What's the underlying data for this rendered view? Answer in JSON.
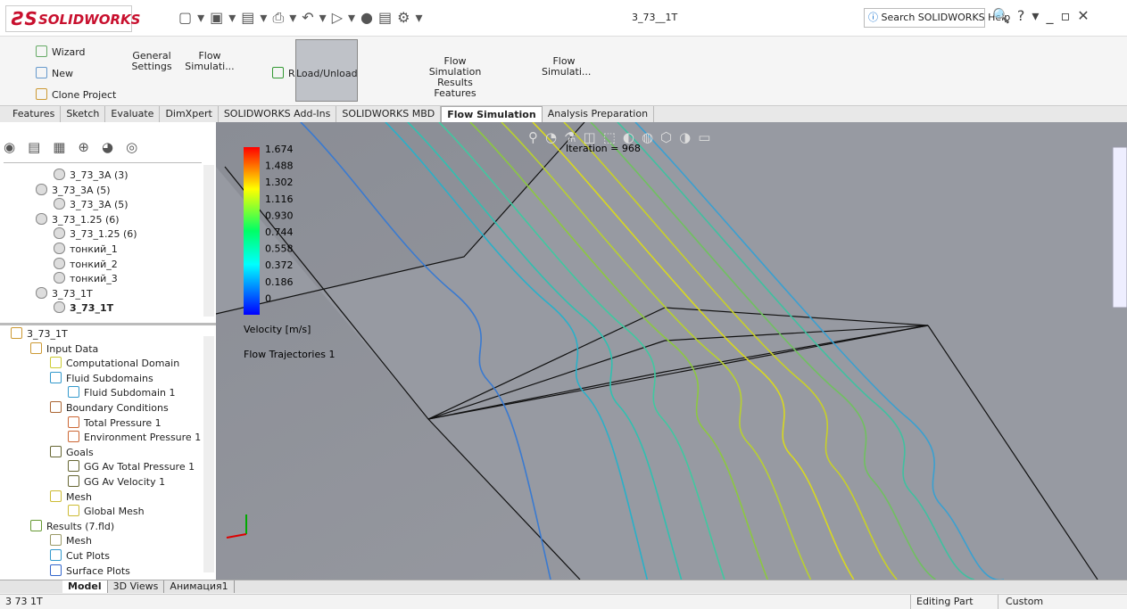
{
  "app": {
    "logo": "SOLIDWORKS",
    "document_title": "3_73__1T",
    "search_placeholder": "Search SOLIDWORKS Help"
  },
  "ribbon": {
    "buttons": [
      "Wizard",
      "New",
      "Clone Project",
      "General Settings",
      "Flow Simulati...",
      "Run",
      "Load/Unload",
      "Flow Simulation Results Features",
      "Flow Simulati..."
    ]
  },
  "tabs": [
    "Features",
    "Sketch",
    "Evaluate",
    "DimXpert",
    "SOLIDWORKS Add-Ins",
    "SOLIDWORKS MBD",
    "Flow Simulation",
    "Analysis Preparation"
  ],
  "config_tree": [
    "3_73_3A (3)",
    "3_73_3A (5)",
    "3_73_3A (5)",
    "3_73_1.25 (6)",
    "3_73_1.25 (6)",
    "тонкий_1",
    "тонкий_2",
    "тонкий_3",
    "3_73_1T",
    "3_73_1T"
  ],
  "analysis_tree": [
    "3_73_1T",
    "Input Data",
    "Computational Domain",
    "Fluid Subdomains",
    "Fluid Subdomain 1",
    "Boundary Conditions",
    "Total Pressure 1",
    "Environment Pressure 1",
    "Goals",
    "GG Av Total Pressure 1",
    "GG Av Velocity 1",
    "Mesh",
    "Global Mesh",
    "Results (7.fld)",
    "Mesh",
    "Cut Plots",
    "Surface Plots"
  ],
  "bottom_tabs": [
    "Model",
    "3D Views",
    "Анимация1"
  ],
  "status": {
    "document": "3 73 1T",
    "mode": "Editing Part",
    "units": "Custom"
  },
  "viewport": {
    "legend_values": [
      "1.674",
      "1.488",
      "1.302",
      "1.116",
      "0.930",
      "0.744",
      "0.558",
      "0.372",
      "0.186",
      "0"
    ],
    "legend_title": "Velocity [m/s]",
    "plot_name": "Flow Trajectories 1",
    "iteration": "Iteration = 968"
  }
}
